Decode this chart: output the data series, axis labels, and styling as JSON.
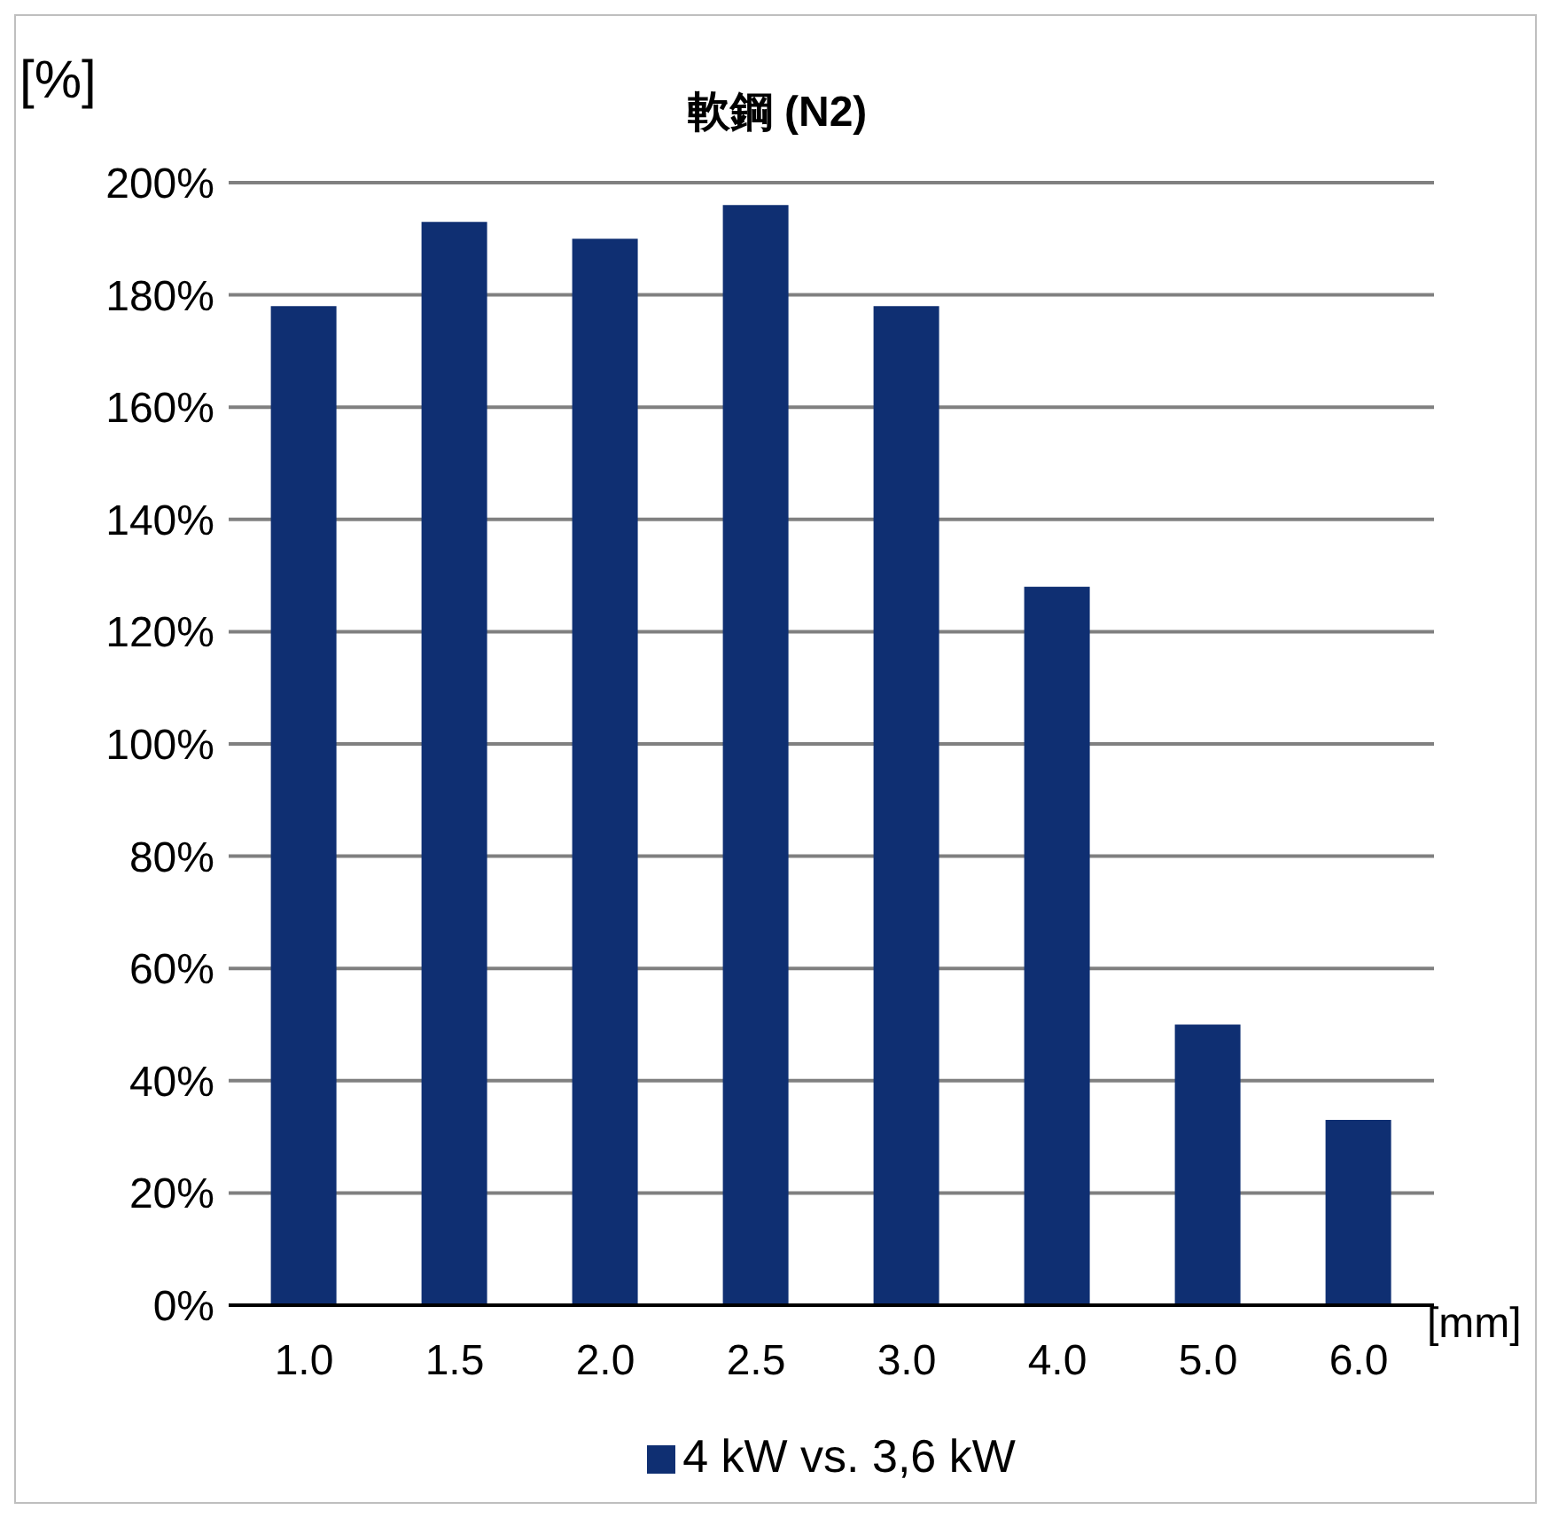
{
  "chart_data": {
    "type": "bar",
    "title": "軟鋼 (N2)",
    "ylabel": "[%]",
    "xlabel": "[mm]",
    "categories": [
      "1.0",
      "1.5",
      "2.0",
      "2.5",
      "3.0",
      "4.0",
      "5.0",
      "6.0"
    ],
    "series": [
      {
        "name": "4 kW vs. 3,6 kW",
        "color": "#0f2f72",
        "values": [
          178,
          193,
          190,
          196,
          178,
          128,
          50,
          33
        ]
      }
    ],
    "ylim": [
      0,
      200
    ],
    "yticks": [
      {
        "value": 0,
        "label": "0%"
      },
      {
        "value": 20,
        "label": "20%"
      },
      {
        "value": 40,
        "label": "40%"
      },
      {
        "value": 60,
        "label": "60%"
      },
      {
        "value": 80,
        "label": "80%"
      },
      {
        "value": 100,
        "label": "100%"
      },
      {
        "value": 120,
        "label": "120%"
      },
      {
        "value": 140,
        "label": "140%"
      },
      {
        "value": 160,
        "label": "160%"
      },
      {
        "value": 180,
        "label": "180%"
      },
      {
        "value": 200,
        "label": "200%"
      }
    ],
    "grid": "y",
    "legend": "bottom"
  }
}
